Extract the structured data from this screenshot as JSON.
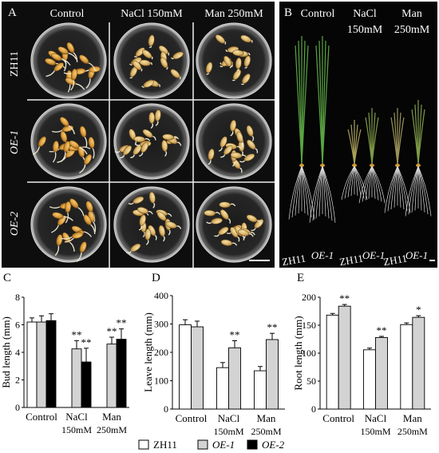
{
  "panel_a": {
    "letter": "A",
    "columns": [
      "Control",
      "NaCl 150mM",
      "Man 250mM"
    ],
    "rows": [
      "ZH11",
      "OE-1",
      "OE-2"
    ]
  },
  "panel_b": {
    "letter": "B",
    "headers": [
      {
        "line1": "Control",
        "line2": ""
      },
      {
        "line1": "NaCl",
        "line2": "150mM"
      },
      {
        "line1": "Man",
        "line2": "250mM"
      }
    ],
    "bottom_labels": [
      "ZH11",
      "OE-1",
      "ZH11",
      "OE-1",
      "ZH11",
      "OE-1"
    ]
  },
  "legend": [
    {
      "label": "ZH11",
      "color": "#ffffff"
    },
    {
      "label": "OE-1",
      "color": "#d3d3d3"
    },
    {
      "label": "OE-2",
      "color": "#000000"
    }
  ],
  "chart_data": [
    {
      "letter": "C",
      "type": "bar",
      "ylabel": "Bud length (mm)",
      "ylim": [
        0,
        8
      ],
      "yticks": [
        0,
        2,
        4,
        6,
        8
      ],
      "categories": [
        {
          "line1": "Control",
          "line2": ""
        },
        {
          "line1": "NaCl",
          "line2": "150mM"
        },
        {
          "line1": "Man",
          "line2": "250mM"
        }
      ],
      "series": [
        {
          "name": "ZH11",
          "color": "#ffffff",
          "values": [
            6.2,
            0,
            0
          ],
          "errors": [
            0.3,
            0,
            0
          ],
          "sig": [
            "",
            "",
            ""
          ]
        },
        {
          "name": "OE-1",
          "color": "#d3d3d3",
          "values": [
            6.2,
            4.25,
            4.6
          ],
          "errors": [
            0.45,
            0.6,
            0.5
          ],
          "sig": [
            "",
            "**",
            "**"
          ]
        },
        {
          "name": "OE-2",
          "color": "#000000",
          "values": [
            6.3,
            3.3,
            4.95
          ],
          "errors": [
            0.5,
            1.0,
            0.75
          ],
          "sig": [
            "",
            "**",
            "**"
          ]
        }
      ]
    },
    {
      "letter": "D",
      "type": "bar",
      "ylabel": "Leave length (mm)",
      "ylim": [
        0,
        400
      ],
      "yticks": [
        0,
        100,
        200,
        300,
        400
      ],
      "categories": [
        {
          "line1": "Control",
          "line2": ""
        },
        {
          "line1": "NaCl",
          "line2": "150mM"
        },
        {
          "line1": "Man",
          "line2": "250mM"
        }
      ],
      "series": [
        {
          "name": "ZH11",
          "color": "#ffffff",
          "values": [
            297,
            146,
            135
          ],
          "errors": [
            18,
            18,
            15
          ],
          "sig": [
            "",
            "",
            ""
          ]
        },
        {
          "name": "OE-1",
          "color": "#d3d3d3",
          "values": [
            290,
            216,
            245
          ],
          "errors": [
            20,
            25,
            22
          ],
          "sig": [
            "",
            "**",
            "**"
          ]
        }
      ]
    },
    {
      "letter": "E",
      "type": "bar",
      "ylabel": "Root length (mm)",
      "ylim": [
        0,
        200
      ],
      "yticks": [
        0,
        50,
        100,
        150,
        200
      ],
      "categories": [
        {
          "line1": "Control",
          "line2": ""
        },
        {
          "line1": "NaCl",
          "line2": "150mM"
        },
        {
          "line1": "Man",
          "line2": "250mM"
        }
      ],
      "series": [
        {
          "name": "ZH11",
          "color": "#ffffff",
          "values": [
            168,
            106,
            151
          ],
          "errors": [
            3,
            3,
            3
          ],
          "sig": [
            "",
            "",
            ""
          ]
        },
        {
          "name": "OE-1",
          "color": "#d3d3d3",
          "values": [
            184,
            128,
            164
          ],
          "errors": [
            3,
            2,
            3
          ],
          "sig": [
            "**",
            "**",
            "*"
          ]
        }
      ]
    }
  ]
}
